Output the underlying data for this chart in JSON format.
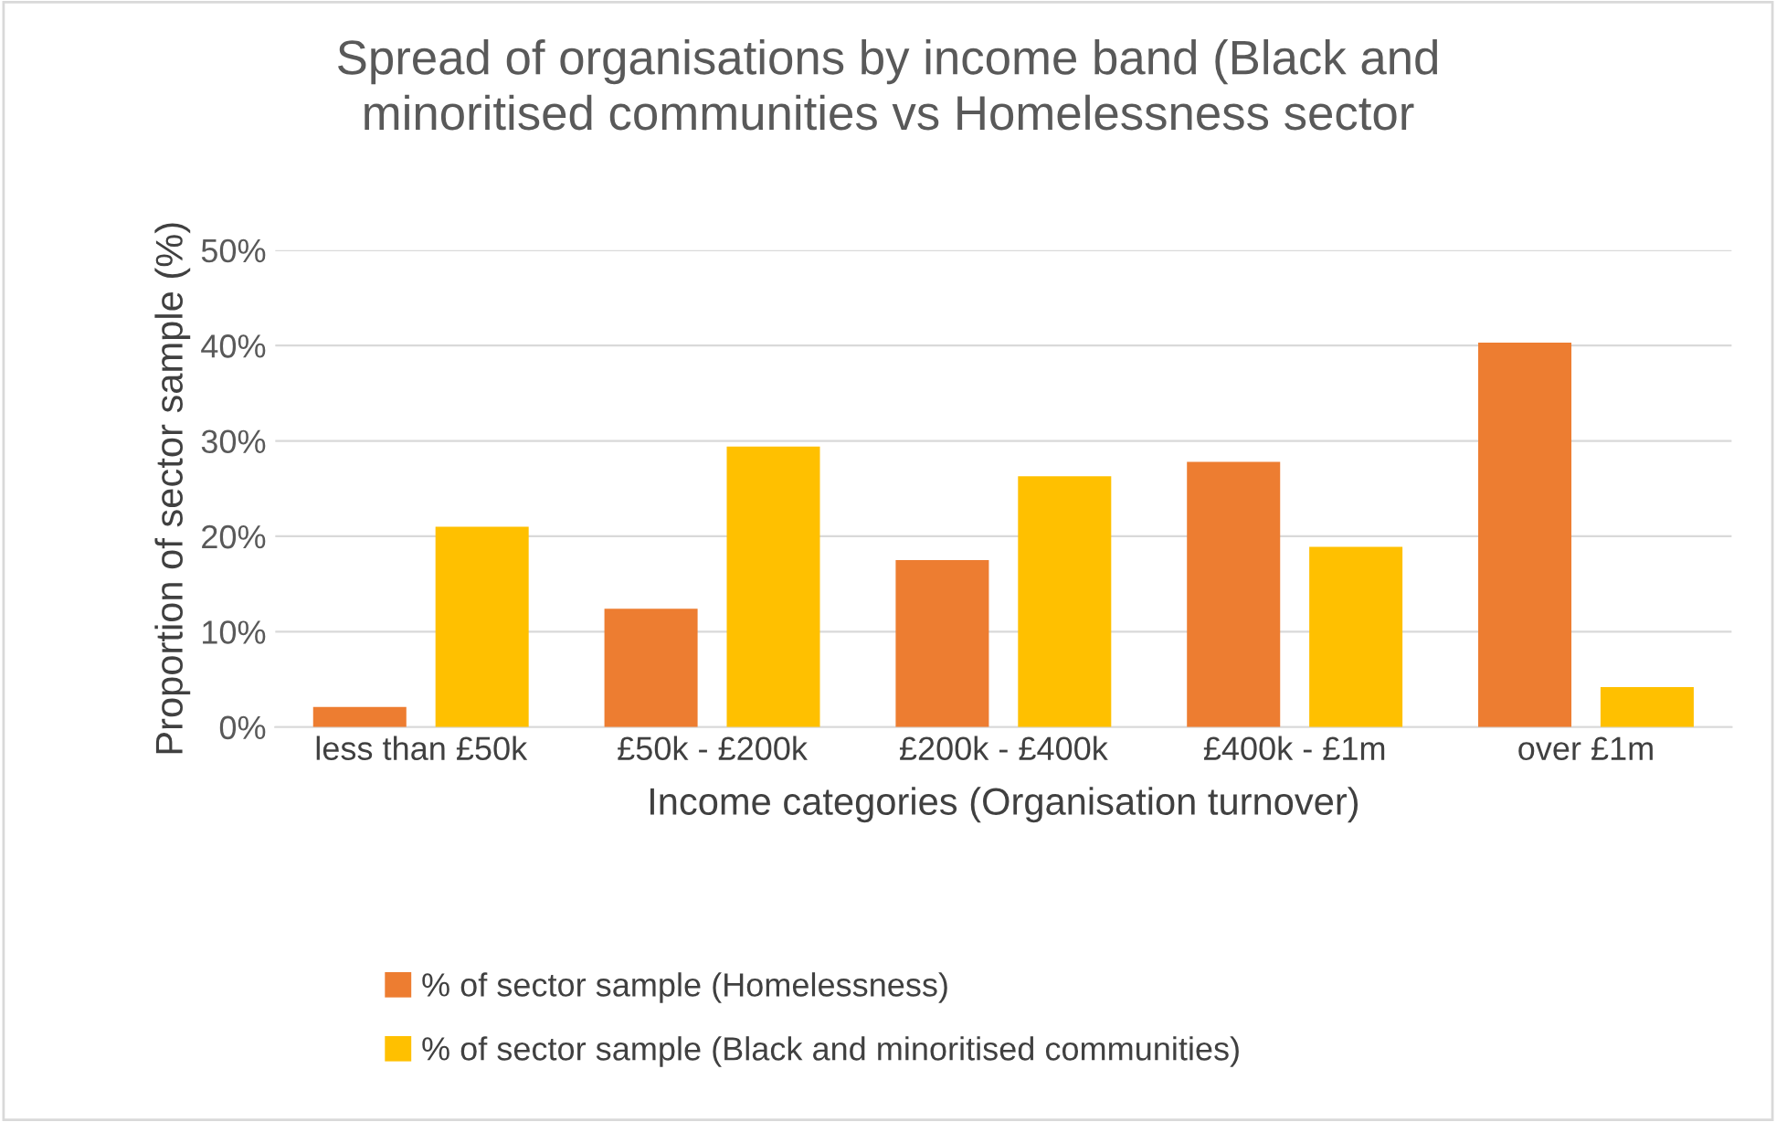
{
  "chart_data": {
    "type": "bar",
    "title": "Spread of organisations by income band (Black and\nminoritised communities vs Homelessness sector",
    "xlabel": "Income categories (Organisation turnover)",
    "ylabel": "Proportion of sector sample (%)",
    "categories": [
      "less than £50k",
      "£50k - £200k",
      "£200k - £400k",
      "£400k - £1m",
      "over £1m"
    ],
    "series": [
      {
        "name": "% of sector sample (Homelessness)",
        "color": "#ed7d31",
        "values": [
          2.1,
          12.4,
          17.5,
          27.8,
          40.3
        ]
      },
      {
        "name": "% of sector sample (Black and minoritised communities)",
        "color": "#ffc000",
        "values": [
          21.0,
          29.4,
          26.3,
          18.9,
          4.2
        ]
      }
    ],
    "ylim": [
      0,
      50
    ],
    "yticks": [
      {
        "value": 0,
        "label": "0%"
      },
      {
        "value": 10,
        "label": "10%"
      },
      {
        "value": 20,
        "label": "20%"
      },
      {
        "value": 30,
        "label": "30%"
      },
      {
        "value": 40,
        "label": "40%"
      },
      {
        "value": 50,
        "label": "50%"
      }
    ],
    "grid": "y",
    "legend": "bottom"
  }
}
